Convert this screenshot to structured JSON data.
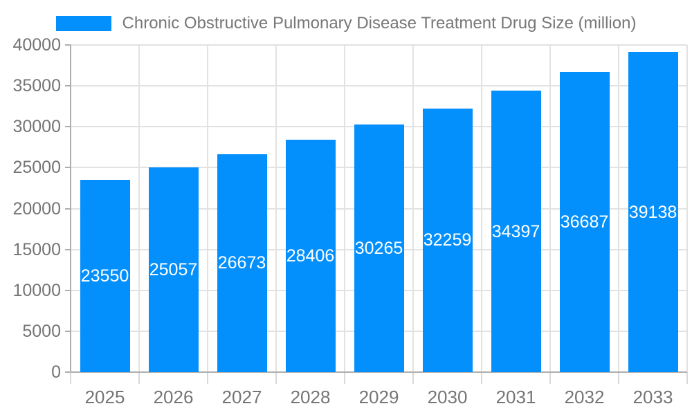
{
  "chart_data": {
    "type": "bar",
    "title": "Chronic Obstructive Pulmonary Disease Treatment Drug Size (million)",
    "legend_entries": [
      "Chronic Obstructive Pulmonary Disease Treatment Drug Size (million)"
    ],
    "legend_position": "top",
    "categories": [
      "2025",
      "2026",
      "2027",
      "2028",
      "2029",
      "2030",
      "2031",
      "2032",
      "2033"
    ],
    "values": [
      23550,
      25057,
      26673,
      28406,
      30265,
      32259,
      34397,
      36687,
      39138
    ],
    "value_labels": [
      "23550",
      "25057",
      "26673",
      "28406",
      "30265",
      "32259",
      "34397",
      "36687",
      "39138"
    ],
    "xlabel": "",
    "ylabel": "",
    "ylim": [
      0,
      40000
    ],
    "yticks": [
      0,
      5000,
      10000,
      15000,
      20000,
      25000,
      30000,
      35000,
      40000
    ],
    "grid": true,
    "colors": {
      "bar": "#0490FC",
      "value_label": "#ffffff",
      "axis_text": "#757575",
      "title_text": "#777777",
      "gridline": "#e2e2e2",
      "axis_line": "#aeaeae",
      "boundary_tick": "#d9d9d9",
      "background": "#ffffff"
    }
  }
}
